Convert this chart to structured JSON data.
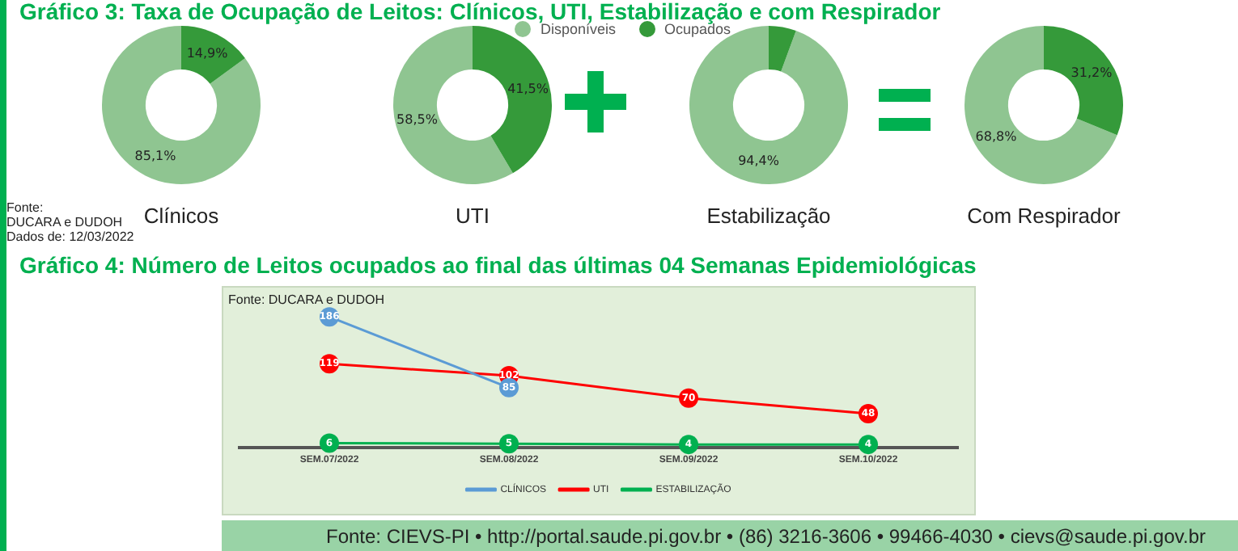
{
  "chart_data": [
    {
      "type": "donut",
      "title": "Gráfico 3: Taxa de Ocupação de Leitos: Clínicos, UTI, Estabilização e com Respirador",
      "xlabel": "Clínicos",
      "categories": [
        null,
        null
      ],
      "values": [
        85.1,
        14.9
      ],
      "colors": [
        "#8fc591",
        "#359a3a"
      ],
      "value_labels": [
        "85,1%",
        "14,9%"
      ],
      "annotations": [
        "Fonte:",
        "DUCARA e DUDOH",
        "Dados de: 12/03/2022"
      ]
    },
    {
      "type": "donut",
      "xlabel": "UTI",
      "categories": [
        "Disponíveis",
        "Ocupados"
      ],
      "values": [
        58.5,
        41.5
      ],
      "colors": [
        "#8fc591",
        "#359a3a"
      ],
      "value_labels": [
        "58,5%",
        "41,5%"
      ],
      "legend": "top right"
    },
    {
      "type": "donut",
      "xlabel": "Estabilização",
      "categories": [
        null,
        null
      ],
      "values": [
        94.4,
        5.6
      ],
      "colors": [
        "#8fc591",
        "#359a3a"
      ],
      "value_labels": [
        "94,4%",
        null
      ]
    },
    {
      "type": "donut",
      "xlabel": "Com Respirador",
      "categories": [
        null,
        null
      ],
      "values": [
        68.8,
        31.2
      ],
      "colors": [
        "#8fc591",
        "#359a3a"
      ],
      "value_labels": [
        "68,8%",
        "31,2%"
      ]
    },
    {
      "type": "line",
      "title": "Gráfico 4: Número de Leitos ocupados ao final das últimas 04 Semanas Epidemiológicas",
      "categories": [
        "SEM.07/2022",
        "SEM.08/2022",
        "SEM.09/2022",
        "SEM.10/2022"
      ],
      "tick_labels": "x",
      "legend": "bottom",
      "marker": "circle",
      "series": [
        {
          "name": "CLÍNICOS",
          "color": "#5b9bd5",
          "values": [
            186,
            85,
            null,
            null
          ],
          "value_labels": [
            "186",
            "85",
            null,
            null
          ]
        },
        {
          "name": "UTI",
          "color": "#ff0000",
          "values": [
            119,
            102,
            70,
            48
          ],
          "value_labels": [
            "119",
            "102",
            "70",
            "48"
          ]
        },
        {
          "name": "ESTABILIZAÇÃO",
          "color": "#00b050",
          "values": [
            6,
            5,
            4,
            4
          ],
          "value_labels": [
            "6",
            "5",
            "4",
            "4"
          ]
        }
      ],
      "annotations": [
        "Fonte: DUCARA e DUDOH",
        "Fonte: CIEVS-PI • http://portal.saude.pi.gov.br • (86) 3216-3606 • 99466-4030 • cievs@saude.pi.gov.br"
      ]
    }
  ]
}
